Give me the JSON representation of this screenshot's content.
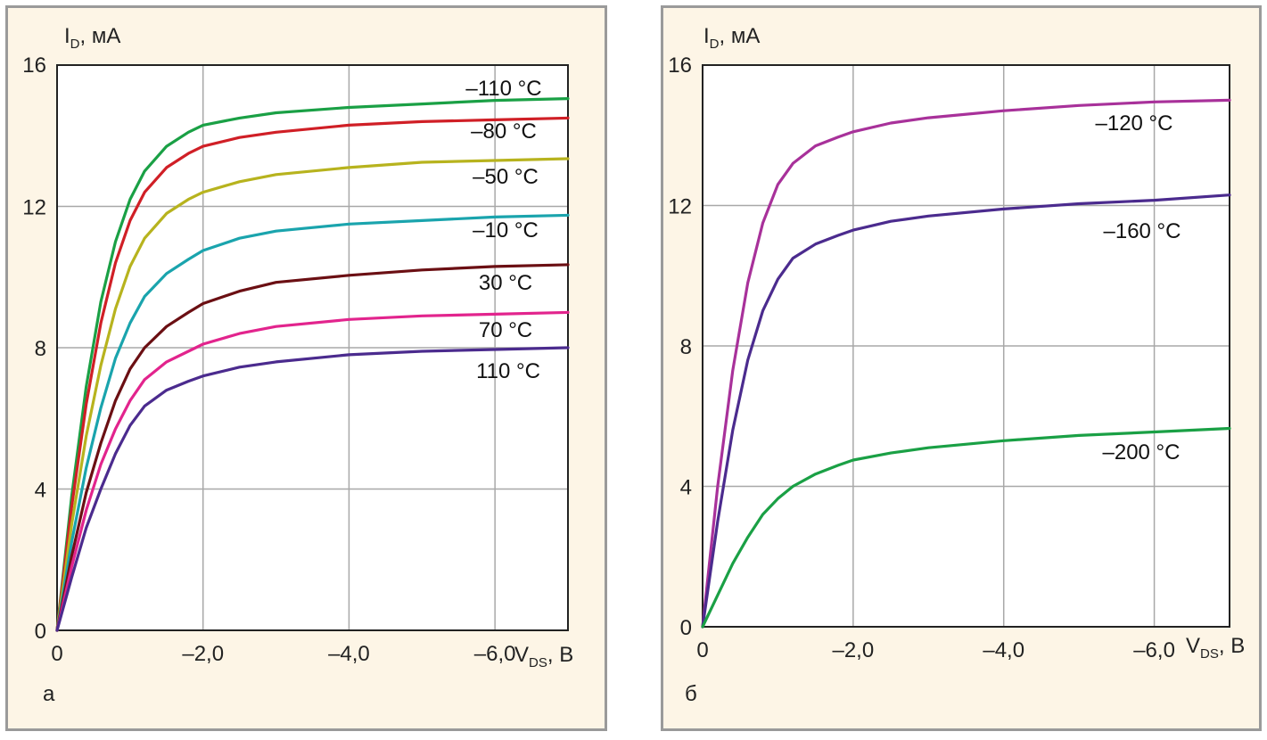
{
  "chart_data": [
    {
      "type": "line",
      "panel_label": "а",
      "ylabel": "I",
      "ylabel_sub": "D",
      "ylabel_unit": ", мА",
      "xlabel": "V",
      "xlabel_sub": "DS",
      "xlabel_unit": ", В",
      "xlim": [
        0,
        -7.0
      ],
      "ylim": [
        0,
        16
      ],
      "x_ticks": [
        {
          "value": 0,
          "label": "0"
        },
        {
          "value": -2.0,
          "label": "–2,0"
        },
        {
          "value": -4.0,
          "label": "–4,0"
        },
        {
          "value": -6.0,
          "label": "–6,0"
        }
      ],
      "y_ticks": [
        {
          "value": 0,
          "label": "0"
        },
        {
          "value": 4,
          "label": "4"
        },
        {
          "value": 8,
          "label": "8"
        },
        {
          "value": 12,
          "label": "12"
        },
        {
          "value": 16,
          "label": "16"
        }
      ],
      "grid": true,
      "series": [
        {
          "name": "–110 °C",
          "color": "#1aa045",
          "points": [
            [
              0,
              0
            ],
            [
              -0.2,
              3.8
            ],
            [
              -0.4,
              6.9
            ],
            [
              -0.6,
              9.3
            ],
            [
              -0.8,
              11.0
            ],
            [
              -1.0,
              12.2
            ],
            [
              -1.2,
              13.0
            ],
            [
              -1.5,
              13.7
            ],
            [
              -1.8,
              14.1
            ],
            [
              -2.0,
              14.3
            ],
            [
              -2.5,
              14.5
            ],
            [
              -3.0,
              14.65
            ],
            [
              -4.0,
              14.8
            ],
            [
              -5.0,
              14.9
            ],
            [
              -6.0,
              15.0
            ],
            [
              -7.0,
              15.05
            ]
          ]
        },
        {
          "name": "–80 °C",
          "color": "#d01f26",
          "points": [
            [
              0,
              0
            ],
            [
              -0.2,
              3.5
            ],
            [
              -0.4,
              6.4
            ],
            [
              -0.6,
              8.7
            ],
            [
              -0.8,
              10.4
            ],
            [
              -1.0,
              11.6
            ],
            [
              -1.2,
              12.4
            ],
            [
              -1.5,
              13.1
            ],
            [
              -1.8,
              13.5
            ],
            [
              -2.0,
              13.7
            ],
            [
              -2.5,
              13.95
            ],
            [
              -3.0,
              14.1
            ],
            [
              -4.0,
              14.3
            ],
            [
              -5.0,
              14.4
            ],
            [
              -6.0,
              14.45
            ],
            [
              -7.0,
              14.5
            ]
          ]
        },
        {
          "name": "–50 °C",
          "color": "#b7b31e",
          "points": [
            [
              0,
              0
            ],
            [
              -0.2,
              3.0
            ],
            [
              -0.4,
              5.5
            ],
            [
              -0.6,
              7.5
            ],
            [
              -0.8,
              9.1
            ],
            [
              -1.0,
              10.3
            ],
            [
              -1.2,
              11.1
            ],
            [
              -1.5,
              11.8
            ],
            [
              -1.8,
              12.2
            ],
            [
              -2.0,
              12.4
            ],
            [
              -2.5,
              12.7
            ],
            [
              -3.0,
              12.9
            ],
            [
              -4.0,
              13.1
            ],
            [
              -5.0,
              13.25
            ],
            [
              -6.0,
              13.3
            ],
            [
              -7.0,
              13.35
            ]
          ]
        },
        {
          "name": "–10 °C",
          "color": "#1aa4ad",
          "points": [
            [
              0,
              0
            ],
            [
              -0.2,
              2.5
            ],
            [
              -0.4,
              4.6
            ],
            [
              -0.6,
              6.3
            ],
            [
              -0.8,
              7.7
            ],
            [
              -1.0,
              8.7
            ],
            [
              -1.2,
              9.45
            ],
            [
              -1.5,
              10.1
            ],
            [
              -1.8,
              10.5
            ],
            [
              -2.0,
              10.75
            ],
            [
              -2.5,
              11.1
            ],
            [
              -3.0,
              11.3
            ],
            [
              -4.0,
              11.5
            ],
            [
              -5.0,
              11.6
            ],
            [
              -6.0,
              11.7
            ],
            [
              -7.0,
              11.75
            ]
          ]
        },
        {
          "name": "30 °C",
          "color": "#6b0f13",
          "points": [
            [
              0,
              0
            ],
            [
              -0.2,
              2.1
            ],
            [
              -0.4,
              3.9
            ],
            [
              -0.6,
              5.3
            ],
            [
              -0.8,
              6.5
            ],
            [
              -1.0,
              7.4
            ],
            [
              -1.2,
              8.0
            ],
            [
              -1.5,
              8.6
            ],
            [
              -1.8,
              9.0
            ],
            [
              -2.0,
              9.25
            ],
            [
              -2.5,
              9.6
            ],
            [
              -3.0,
              9.85
            ],
            [
              -4.0,
              10.05
            ],
            [
              -5.0,
              10.2
            ],
            [
              -6.0,
              10.3
            ],
            [
              -7.0,
              10.35
            ]
          ]
        },
        {
          "name": "70 °C",
          "color": "#e2248d",
          "points": [
            [
              0,
              0
            ],
            [
              -0.2,
              1.8
            ],
            [
              -0.4,
              3.4
            ],
            [
              -0.6,
              4.7
            ],
            [
              -0.8,
              5.7
            ],
            [
              -1.0,
              6.5
            ],
            [
              -1.2,
              7.1
            ],
            [
              -1.5,
              7.6
            ],
            [
              -1.8,
              7.9
            ],
            [
              -2.0,
              8.1
            ],
            [
              -2.5,
              8.4
            ],
            [
              -3.0,
              8.6
            ],
            [
              -4.0,
              8.8
            ],
            [
              -5.0,
              8.9
            ],
            [
              -6.0,
              8.95
            ],
            [
              -7.0,
              9.0
            ]
          ]
        },
        {
          "name": "110 °C",
          "color": "#4b2b8e",
          "points": [
            [
              0,
              0
            ],
            [
              -0.2,
              1.5
            ],
            [
              -0.4,
              2.9
            ],
            [
              -0.6,
              4.0
            ],
            [
              -0.8,
              5.0
            ],
            [
              -1.0,
              5.8
            ],
            [
              -1.2,
              6.35
            ],
            [
              -1.5,
              6.8
            ],
            [
              -1.8,
              7.05
            ],
            [
              -2.0,
              7.2
            ],
            [
              -2.5,
              7.45
            ],
            [
              -3.0,
              7.6
            ],
            [
              -4.0,
              7.8
            ],
            [
              -5.0,
              7.9
            ],
            [
              -6.0,
              7.95
            ],
            [
              -7.0,
              8.0
            ]
          ]
        }
      ]
    },
    {
      "type": "line",
      "panel_label": "б",
      "ylabel": "I",
      "ylabel_sub": "D",
      "ylabel_unit": ", мА",
      "xlabel": "V",
      "xlabel_sub": "DS",
      "xlabel_unit": ", В",
      "xlim": [
        0,
        -7.0
      ],
      "ylim": [
        0,
        16
      ],
      "x_ticks": [
        {
          "value": 0,
          "label": "0"
        },
        {
          "value": -2.0,
          "label": "–2,0"
        },
        {
          "value": -4.0,
          "label": "–4,0"
        },
        {
          "value": -6.0,
          "label": "–6,0"
        }
      ],
      "y_ticks": [
        {
          "value": 0,
          "label": "0"
        },
        {
          "value": 4,
          "label": "4"
        },
        {
          "value": 8,
          "label": "8"
        },
        {
          "value": 12,
          "label": "12"
        },
        {
          "value": 16,
          "label": "16"
        }
      ],
      "grid": true,
      "series": [
        {
          "name": "–120 °C",
          "color": "#a8319a",
          "points": [
            [
              0,
              0
            ],
            [
              -0.2,
              4.0
            ],
            [
              -0.4,
              7.3
            ],
            [
              -0.6,
              9.8
            ],
            [
              -0.8,
              11.5
            ],
            [
              -1.0,
              12.6
            ],
            [
              -1.2,
              13.2
            ],
            [
              -1.5,
              13.7
            ],
            [
              -1.8,
              13.95
            ],
            [
              -2.0,
              14.1
            ],
            [
              -2.5,
              14.35
            ],
            [
              -3.0,
              14.5
            ],
            [
              -4.0,
              14.7
            ],
            [
              -5.0,
              14.85
            ],
            [
              -6.0,
              14.95
            ],
            [
              -7.0,
              15.0
            ]
          ]
        },
        {
          "name": "–160 °C",
          "color": "#4b2b8e",
          "points": [
            [
              0,
              0
            ],
            [
              -0.2,
              3.0
            ],
            [
              -0.4,
              5.6
            ],
            [
              -0.6,
              7.6
            ],
            [
              -0.8,
              9.0
            ],
            [
              -1.0,
              9.9
            ],
            [
              -1.2,
              10.5
            ],
            [
              -1.5,
              10.9
            ],
            [
              -1.8,
              11.15
            ],
            [
              -2.0,
              11.3
            ],
            [
              -2.5,
              11.55
            ],
            [
              -3.0,
              11.7
            ],
            [
              -4.0,
              11.9
            ],
            [
              -5.0,
              12.05
            ],
            [
              -6.0,
              12.15
            ],
            [
              -7.0,
              12.3
            ]
          ]
        },
        {
          "name": "–200 °C",
          "color": "#1aa045",
          "points": [
            [
              0,
              0
            ],
            [
              -0.2,
              0.9
            ],
            [
              -0.4,
              1.8
            ],
            [
              -0.6,
              2.55
            ],
            [
              -0.8,
              3.2
            ],
            [
              -1.0,
              3.65
            ],
            [
              -1.2,
              4.0
            ],
            [
              -1.5,
              4.35
            ],
            [
              -1.8,
              4.6
            ],
            [
              -2.0,
              4.75
            ],
            [
              -2.5,
              4.95
            ],
            [
              -3.0,
              5.1
            ],
            [
              -4.0,
              5.3
            ],
            [
              -5.0,
              5.45
            ],
            [
              -6.0,
              5.55
            ],
            [
              -7.0,
              5.65
            ]
          ]
        }
      ]
    }
  ]
}
